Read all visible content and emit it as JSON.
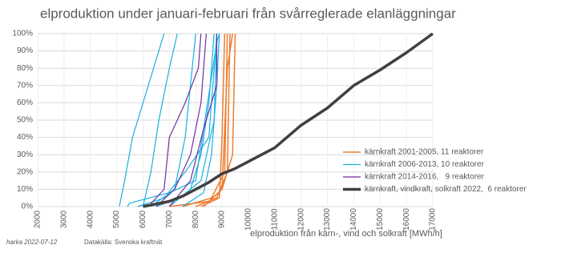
{
  "chart_data": {
    "type": "line",
    "title": "elproduktion under januari-februari från svårreglerade elanläggningar",
    "x_label": "elproduktion från kärn-, vind och solkraft [MWh/h]",
    "footer_author": "harka 2022-07-12",
    "footer_source": "Datakälla: Svenska kraftnät",
    "xlim": [
      2000,
      17000
    ],
    "xticks": [
      2000,
      3000,
      4000,
      5000,
      6000,
      7000,
      8000,
      9000,
      10000,
      11000,
      12000,
      13000,
      14000,
      15000,
      16000,
      17000
    ],
    "ylim": [
      0,
      100
    ],
    "yticks": [
      {
        "value": 0,
        "label": "0%"
      },
      {
        "value": 10,
        "label": "10%"
      },
      {
        "value": 20,
        "label": "20%"
      },
      {
        "value": 30,
        "label": "30%"
      },
      {
        "value": 40,
        "label": "40%"
      },
      {
        "value": 50,
        "label": "50%"
      },
      {
        "value": 60,
        "label": "60%"
      },
      {
        "value": 70,
        "label": "70%"
      },
      {
        "value": 80,
        "label": "80%"
      },
      {
        "value": 90,
        "label": "90%"
      },
      {
        "value": 100,
        "label": "100%"
      }
    ],
    "grid": true,
    "legend": "right",
    "series": [
      {
        "name": "kärnkraft 2001-2005, 11 reaktorer",
        "color": "#ed7d31",
        "line_width": 1.5,
        "lines": [
          {
            "x": [
              8000,
              8800,
              9200,
              9300
            ],
            "values": [
              0,
              5,
              20,
              100
            ]
          },
          {
            "x": [
              8300,
              9000,
              9400,
              9500
            ],
            "values": [
              0,
              10,
              30,
              100
            ]
          },
          {
            "x": [
              7500,
              8600,
              9100,
              9200
            ],
            "values": [
              0,
              5,
              20,
              100
            ]
          },
          {
            "x": [
              8200,
              8900,
              9000,
              9100
            ],
            "values": [
              0,
              5,
              40,
              100
            ]
          },
          {
            "x": [
              7000,
              8500,
              9000,
              9200,
              9400
            ],
            "values": [
              0,
              3,
              10,
              80,
              100
            ]
          }
        ]
      },
      {
        "name": "kärnkraft 2006-2013, 10 reaktorer",
        "color": "#1ab0e0",
        "line_width": 1.2,
        "lines": [
          {
            "x": [
              5100,
              5300,
              5600,
              6000,
              6400,
              6800
            ],
            "values": [
              0,
              15,
              40,
              60,
              80,
              100
            ]
          },
          {
            "x": [
              6000,
              6300,
              6600,
              7000,
              7300
            ],
            "values": [
              0,
              20,
              50,
              80,
              100
            ]
          },
          {
            "x": [
              6300,
              7200,
              7600,
              7800,
              8000
            ],
            "values": [
              0,
              10,
              40,
              70,
              100
            ]
          },
          {
            "x": [
              7000,
              7800,
              8200,
              8500,
              8700
            ],
            "values": [
              0,
              10,
              30,
              60,
              100
            ]
          },
          {
            "x": [
              7500,
              8300,
              8600,
              8800,
              8900
            ],
            "values": [
              0,
              8,
              30,
              70,
              100
            ]
          },
          {
            "x": [
              5800,
              6800,
              7600,
              8500,
              8800
            ],
            "values": [
              0,
              5,
              20,
              40,
              100
            ]
          },
          {
            "x": [
              6500,
              7400,
              8200,
              8700,
              8800
            ],
            "values": [
              0,
              5,
              15,
              50,
              100
            ]
          },
          {
            "x": [
              5400,
              5500,
              7000,
              8000,
              8800,
              8900
            ],
            "values": [
              0,
              2,
              8,
              15,
              95,
              100
            ]
          }
        ]
      },
      {
        "name": "kärnkraft 2014-2016,   9 reaktorer",
        "color": "#7030a0",
        "line_width": 1.2,
        "lines": [
          {
            "x": [
              6200,
              6800,
              7000,
              7600,
              8100,
              8200
            ],
            "values": [
              0,
              10,
              40,
              60,
              80,
              100
            ]
          },
          {
            "x": [
              6500,
              7200,
              7800,
              8200,
              8400
            ],
            "values": [
              0,
              10,
              30,
              60,
              100
            ]
          },
          {
            "x": [
              7000,
              7800,
              8300,
              8800,
              8800
            ],
            "values": [
              0,
              15,
              45,
              70,
              100
            ]
          }
        ]
      },
      {
        "name": "kärnkraft, vindkraft, solkraft 2022,  6 reaktorer",
        "color": "#404040",
        "line_width": 3.5,
        "lines": [
          {
            "x": [
              6000,
              7000,
              7500,
              8000,
              8500,
              9000,
              9500,
              10000,
              11000,
              12000,
              13000,
              14000,
              15000,
              16000,
              17000
            ],
            "values": [
              0,
              3,
              6,
              10,
              14,
              19,
              22,
              26,
              34,
              47,
              57,
              70,
              79,
              89,
              100
            ]
          }
        ]
      }
    ]
  }
}
